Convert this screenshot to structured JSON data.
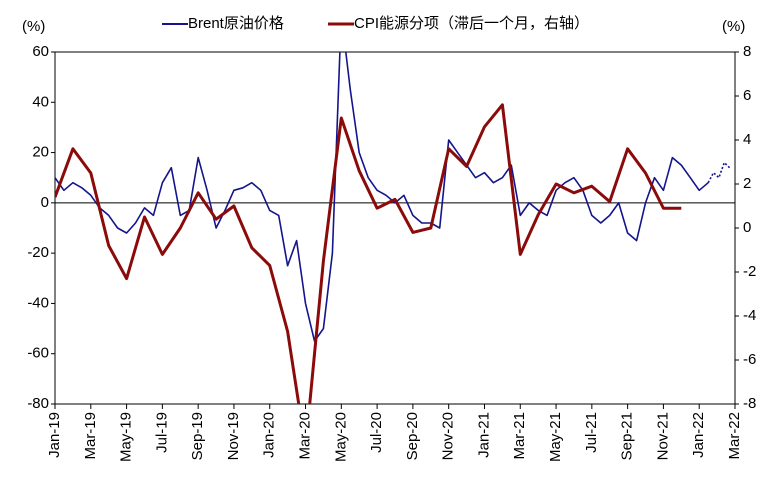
{
  "chart_data": {
    "type": "line",
    "y_unit": "(%)",
    "y2_unit": "(%)",
    "xlim": [
      0,
      38
    ],
    "xticks": [
      {
        "value": 0,
        "label": "Jan-19"
      },
      {
        "value": 2,
        "label": "Mar-19"
      },
      {
        "value": 4,
        "label": "May-19"
      },
      {
        "value": 6,
        "label": "Jul-19"
      },
      {
        "value": 8,
        "label": "Sep-19"
      },
      {
        "value": 10,
        "label": "Nov-19"
      },
      {
        "value": 12,
        "label": "Jan-20"
      },
      {
        "value": 14,
        "label": "Mar-20"
      },
      {
        "value": 16,
        "label": "May-20"
      },
      {
        "value": 18,
        "label": "Jul-20"
      },
      {
        "value": 20,
        "label": "Sep-20"
      },
      {
        "value": 22,
        "label": "Nov-20"
      },
      {
        "value": 24,
        "label": "Jan-21"
      },
      {
        "value": 26,
        "label": "Mar-21"
      },
      {
        "value": 28,
        "label": "May-21"
      },
      {
        "value": 30,
        "label": "Jul-21"
      },
      {
        "value": 32,
        "label": "Sep-21"
      },
      {
        "value": 34,
        "label": "Nov-21"
      },
      {
        "value": 36,
        "label": "Jan-22"
      },
      {
        "value": 38,
        "label": "Mar-22"
      }
    ],
    "ylim": [
      -80,
      60
    ],
    "yticks": [
      -80,
      -60,
      -40,
      -20,
      0,
      20,
      40,
      60
    ],
    "y2lim": [
      -8,
      8
    ],
    "y2ticks": [
      -8,
      -6,
      -4,
      -2,
      0,
      2,
      4,
      6,
      8
    ],
    "series": [
      {
        "name": "Brent原油价格",
        "color": "#14148c",
        "x": [
          0,
          0.5,
          1,
          1.5,
          2,
          2.5,
          3,
          3.5,
          4,
          4.5,
          5,
          5.5,
          6,
          6.5,
          7,
          7.5,
          8,
          8.5,
          9,
          9.5,
          10,
          10.5,
          11,
          11.5,
          12,
          12.5,
          13,
          13.5,
          14,
          14.5,
          15,
          15.5,
          16,
          16.5,
          17,
          17.5,
          18,
          18.5,
          19,
          19.5,
          20,
          20.5,
          21,
          21.5,
          22,
          22.5,
          23,
          23.5,
          24,
          24.5,
          25,
          25.5,
          26,
          26.5,
          27,
          27.5,
          28,
          28.5,
          29,
          29.5,
          30,
          30.5,
          31,
          31.5,
          32,
          32.5,
          33,
          33.5,
          34,
          34.5,
          35,
          35.5,
          36,
          36.5
        ],
        "values": [
          10,
          5,
          8,
          6,
          3,
          -2,
          -5,
          -10,
          -12,
          -8,
          -2,
          -5,
          8,
          14,
          -5,
          -3,
          18,
          5,
          -10,
          -3,
          5,
          6,
          8,
          5,
          -3,
          -5,
          -25,
          -15,
          -40,
          -55,
          -50,
          -20,
          75,
          45,
          20,
          10,
          5,
          3,
          0,
          3,
          -5,
          -8,
          -8,
          -10,
          25,
          20,
          15,
          10,
          12,
          8,
          10,
          15,
          -5,
          0,
          -3,
          -5,
          5,
          8,
          10,
          5,
          -5,
          -8,
          -5,
          0,
          -12,
          -15,
          0,
          10,
          5,
          18,
          15,
          10,
          5,
          8
        ]
      },
      {
        "color": "#14148c",
        "dotted": true,
        "x": [
          36.5,
          36.8,
          37.1,
          37.4,
          37.7
        ],
        "values": [
          8,
          12,
          10,
          16,
          14
        ]
      },
      {
        "name": "CPI能源分项（滞后一个月，右轴）",
        "color": "#8b0a0a",
        "axis": "y2",
        "x": [
          0,
          1,
          2,
          3,
          4,
          5,
          6,
          7,
          8,
          9,
          10,
          11,
          12,
          13,
          14,
          15,
          16,
          17,
          18,
          19,
          20,
          21,
          22,
          23,
          24,
          25,
          26,
          27,
          28,
          29,
          30,
          31,
          32,
          33,
          34,
          35
        ],
        "values": [
          1.4,
          3.6,
          2.5,
          -0.8,
          -2.3,
          0.5,
          -1.2,
          0,
          1.6,
          0.4,
          1.0,
          -0.9,
          -1.7,
          -4.7,
          -10,
          -1.5,
          5.0,
          2.6,
          0.9,
          1.3,
          -0.2,
          0,
          3.6,
          2.8,
          4.6,
          5.6,
          -1.2,
          0.6,
          2.0,
          1.6,
          1.9,
          1.2,
          3.6,
          2.5,
          0.9,
          0.9
        ]
      }
    ]
  }
}
